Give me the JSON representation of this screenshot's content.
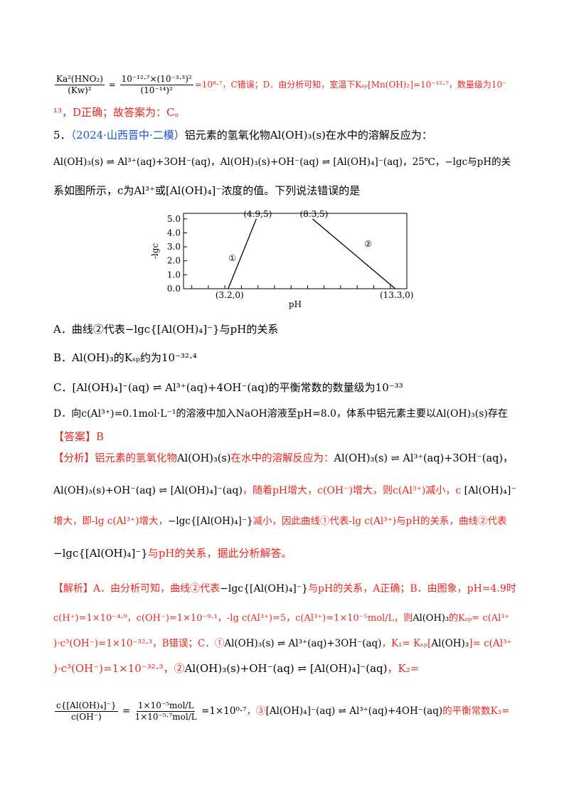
{
  "lines": [
    {
      "segments": [
        {
          "num": "Ka²(HNO₂)",
          "den": "(Kw)²",
          "color": "black"
        },
        {
          "text": " = ",
          "color": "black"
        },
        {
          "num": "10⁻¹²·⁷×(10⁻³·³)²",
          "den": "(10⁻¹⁴)²",
          "color": "black"
        },
        {
          "text": "=10⁸·⁷，C错误；D．由分析可知，室温下Kₛₚ[Mn(OH)₂]=10⁻¹²·⁷，数量级为10⁻",
          "color": "red"
        }
      ]
    },
    {
      "segments": [
        {
          "text": "¹³，D正确；故答案为：C。",
          "color": "red"
        }
      ]
    },
    {
      "segments": [
        {
          "text": "5．",
          "color": "black"
        },
        {
          "text": "（2024·山西晋中·二模）",
          "color": "blue"
        },
        {
          "text": "铝元素的氢氧化物Al(OH)₃(s)在水中的溶解反应为：",
          "color": "black"
        }
      ]
    },
    {
      "segments": [
        {
          "text": "Al(OH)₃(s) ⇌ Al³⁺(aq)+3OH⁻(aq)，Al(OH)₃(s)+OH⁻(aq) ⇌ [Al(OH)₄]⁻(aq)，25℃，−lgc与pH的关",
          "color": "black"
        }
      ]
    },
    {
      "segments": [
        {
          "text": "系如图所示，c为Al³⁺或[Al(OH)₄]⁻浓度的值。下列说法错误的是",
          "color": "black"
        }
      ]
    },
    {
      "segments": [
        {
          "text": "A．曲线②代表−lgc{[Al(OH)₄]⁻}与pH的关系",
          "color": "black"
        }
      ]
    },
    {
      "segments": [
        {
          "text": "B．Al(OH)₃的Kₛₚ约为10⁻³²·⁴",
          "color": "black"
        }
      ]
    },
    {
      "segments": [
        {
          "text": "C．[Al(OH)₄]⁻(aq) ⇌ Al³⁺(aq)+4OH⁻(aq)的平衡常数的数量级为10⁻³³",
          "color": "black"
        }
      ]
    },
    {
      "segments": [
        {
          "text": "D．向c(Al³⁺)=0.1mol·L⁻¹的溶液中加入NaOH溶液至pH=8.0，体系中铝元素主要以Al(OH)₃(s)存在",
          "color": "black"
        }
      ]
    },
    {
      "segments": [
        {
          "text": "【答案】B",
          "color": "red"
        }
      ]
    },
    {
      "segments": [
        {
          "text": "【分析】铝元素的氢氧化物",
          "color": "red"
        },
        {
          "text": "Al(OH)₃(s)",
          "color": "black"
        },
        {
          "text": "在水中的溶解反应为：",
          "color": "red"
        },
        {
          "text": "Al(OH)₃(s) ⇌ Al³⁺(aq)+3OH⁻(aq)，",
          "color": "black"
        }
      ]
    },
    {
      "segments": [
        {
          "text": "Al(OH)₃(s)+OH⁻(aq) ⇌ [Al(OH)₄]⁻(aq)",
          "color": "black"
        },
        {
          "text": "，随着pH增大，c(OH⁻)增大，则c(Al³⁺)减小，c ",
          "color": "red"
        },
        {
          "text": "[Al(OH)₄]⁻",
          "color": "black"
        }
      ]
    },
    {
      "segments": [
        {
          "text": "增大，即-lg c(Al³⁺)增大，",
          "color": "red"
        },
        {
          "text": "−lgc{[Al(OH)₄]⁻}",
          "color": "black"
        },
        {
          "text": "减小，因此曲线①代表-lg c(Al³⁺)与pH的关系，曲线②代表",
          "color": "red"
        }
      ]
    },
    {
      "segments": [
        {
          "text": "−lgc{[Al(OH)₄]⁻}",
          "color": "black"
        },
        {
          "text": "与pH的关系，据此分析解答。",
          "color": "red"
        }
      ]
    },
    {
      "segments": [
        {
          "text": "【解析】A．由分析可知，曲线②代表",
          "color": "red"
        },
        {
          "text": "−lgc{[Al(OH)₄]⁻}",
          "color": "black"
        },
        {
          "text": "与pH的关系，A正确；B．由图象，pH=4.9时",
          "color": "red"
        }
      ]
    },
    {
      "segments": [
        {
          "text": "c(H⁺)=1×10⁻⁴·⁹，c(OH⁻)=1×10⁻⁹·¹，-lg c(Al³⁺)=5，c(Al³⁺)=1×10⁻⁵mol/L，则",
          "color": "red"
        },
        {
          "text": "Al(OH)₃",
          "color": "black"
        },
        {
          "text": "的Kₛₚ= c(Al³⁺",
          "color": "red"
        }
      ]
    },
    {
      "segments": [
        {
          "text": ")·c³(OH⁻)=1×10⁻³²·³，B错误；C．①",
          "color": "red"
        },
        {
          "text": "Al(OH)₃(s) ⇌ Al³⁺(aq)+3OH⁻(aq)",
          "color": "black"
        },
        {
          "text": "，K₁= Kₛₚ[",
          "color": "red"
        },
        {
          "text": "Al(OH)₃",
          "color": "black"
        },
        {
          "text": "]= c(Al³⁺",
          "color": "red"
        }
      ]
    },
    {
      "segments": [
        {
          "text": ")·c³(OH⁻)=1×10⁻³²·³，②",
          "color": "red"
        },
        {
          "text": "Al(OH)₃(s)+OH⁻(aq) ⇌ [Al(OH)₄]⁻(aq)",
          "color": "black"
        },
        {
          "text": "，K₂=",
          "color": "red"
        }
      ]
    },
    {
      "segments": [
        {
          "num": "c{[Al(OH)₄]⁻}",
          "den": "c(OH⁻)",
          "color": "black"
        },
        {
          "text": " = ",
          "color": "black"
        },
        {
          "num": "1×10⁻⁵mol/L",
          "den": "1×10⁻⁵·⁷mol/L",
          "color": "black"
        },
        {
          "text": " =1×10⁰·⁷",
          "color": "black"
        },
        {
          "text": "，③",
          "color": "red"
        },
        {
          "text": "[Al(OH)₄]⁻(aq) ⇌ Al³⁺(aq)+4OH⁻(aq)",
          "color": "black"
        },
        {
          "text": "的平衡常数K₃=",
          "color": "red"
        }
      ]
    }
  ],
  "figure": {
    "type": "line",
    "ylabel": "-lgc",
    "xlabel": "pH",
    "xlim": [
      0.5,
      14
    ],
    "ylim": [
      0,
      5.4
    ],
    "yticks": [
      {
        "value": 0,
        "label": "0.0"
      },
      {
        "value": 1,
        "label": "1.0"
      },
      {
        "value": 2,
        "label": "2.0"
      },
      {
        "value": 3,
        "label": "3.0"
      },
      {
        "value": 4,
        "label": "4.0"
      },
      {
        "value": 5,
        "label": "5.0"
      }
    ],
    "xticks": [
      1,
      2,
      3,
      4,
      5,
      6,
      7,
      8,
      9,
      10,
      11,
      12,
      13,
      14
    ],
    "series": [
      {
        "name": "①",
        "x": [
          3.2,
          4.9
        ],
        "y": [
          0,
          5
        ],
        "point_labels": [
          "(3.2,0)",
          "(4.9,5)"
        ],
        "color": "#000000"
      },
      {
        "name": "②",
        "x": [
          8.3,
          13.3
        ],
        "y": [
          5,
          0
        ],
        "point_labels": [
          "(8.3,5)",
          "(13.3,0)"
        ],
        "color": "#000000"
      }
    ]
  }
}
